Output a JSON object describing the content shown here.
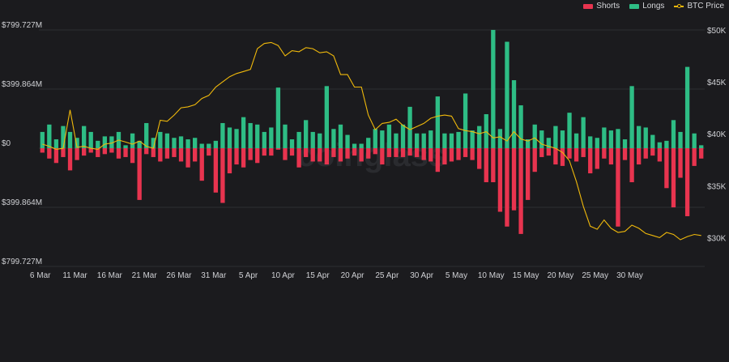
{
  "chart_data": {
    "type": "bar",
    "watermark": "coinglass",
    "legend": [
      {
        "name": "Shorts",
        "color": "#e8344f"
      },
      {
        "name": "Longs",
        "color": "#2ebd85"
      },
      {
        "name": "BTC Price",
        "color": "#f0b90b"
      }
    ],
    "legend_position": "top-right",
    "y_left_ticks": [
      "$799.727M",
      "$399.864M",
      "$0",
      "$399.864M",
      "$799.727M"
    ],
    "y_left_range": [
      -799.727,
      799.727
    ],
    "y_right_ticks": [
      "$50K",
      "$45K",
      "$40K",
      "$35K",
      "$30K"
    ],
    "y_right_range": [
      27300,
      50000
    ],
    "x_tick_labels": [
      "6 Mar",
      "11 Mar",
      "16 Mar",
      "21 Mar",
      "26 Mar",
      "31 Mar",
      "5 Apr",
      "10 Apr",
      "15 Apr",
      "20 Apr",
      "25 Apr",
      "30 Apr",
      "5 May",
      "10 May",
      "15 May",
      "20 May",
      "25 May",
      "30 May"
    ],
    "x_tick_indices": [
      0,
      5,
      10,
      15,
      20,
      25,
      30,
      35,
      40,
      45,
      50,
      55,
      60,
      65,
      70,
      75,
      80,
      85
    ],
    "longs": [
      110,
      160,
      60,
      150,
      110,
      70,
      150,
      110,
      50,
      80,
      80,
      110,
      20,
      100,
      50,
      170,
      70,
      110,
      100,
      70,
      80,
      60,
      70,
      30,
      30,
      50,
      170,
      140,
      130,
      210,
      170,
      160,
      110,
      140,
      410,
      160,
      60,
      110,
      190,
      110,
      100,
      420,
      130,
      160,
      90,
      30,
      30,
      70,
      130,
      120,
      160,
      100,
      160,
      280,
      100,
      100,
      120,
      350,
      100,
      100,
      110,
      370,
      120,
      150,
      230,
      800,
      130,
      720,
      460,
      290,
      60,
      160,
      120,
      70,
      150,
      120,
      240,
      100,
      210,
      80,
      70,
      140,
      120,
      130,
      60,
      420,
      150,
      140,
      90,
      40,
      50,
      190,
      110,
      550,
      100,
      20
    ],
    "shorts": [
      30,
      70,
      100,
      60,
      150,
      80,
      50,
      30,
      60,
      40,
      30,
      70,
      60,
      100,
      350,
      40,
      60,
      90,
      70,
      60,
      90,
      130,
      90,
      220,
      50,
      300,
      370,
      170,
      110,
      130,
      80,
      100,
      50,
      50,
      10,
      80,
      50,
      130,
      60,
      90,
      90,
      110,
      60,
      90,
      70,
      50,
      90,
      70,
      40,
      110,
      60,
      60,
      60,
      50,
      60,
      80,
      90,
      160,
      110,
      90,
      80,
      60,
      80,
      140,
      230,
      230,
      430,
      530,
      420,
      580,
      350,
      160,
      60,
      50,
      110,
      120,
      70,
      90,
      60,
      170,
      140,
      70,
      110,
      530,
      80,
      230,
      110,
      70,
      50,
      90,
      270,
      400,
      200,
      460,
      120,
      70
    ],
    "btc_price": [
      39000,
      38800,
      38500,
      38600,
      42300,
      38700,
      38800,
      38600,
      38500,
      39000,
      39100,
      39400,
      39200,
      39000,
      39300,
      38800,
      38600,
      41300,
      41200,
      41800,
      42500,
      42600,
      42800,
      43400,
      43700,
      44500,
      45000,
      45500,
      45800,
      46000,
      46200,
      48200,
      48700,
      48800,
      48500,
      47500,
      48000,
      47900,
      48300,
      48200,
      47800,
      47900,
      47500,
      45700,
      45700,
      44500,
      44500,
      41800,
      40400,
      41000,
      41100,
      41400,
      40800,
      40400,
      40700,
      41000,
      41500,
      41700,
      41800,
      41700,
      40500,
      40300,
      40200,
      40000,
      40200,
      39600,
      39700,
      39300,
      40200,
      39500,
      39300,
      39600,
      39000,
      38800,
      38600,
      38200,
      37400,
      35400,
      33000,
      31100,
      30800,
      31700,
      30900,
      30500,
      30600,
      31200,
      30900,
      30400,
      30200,
      30000,
      30500,
      30300,
      29800,
      30100,
      30300,
      30200
    ]
  }
}
